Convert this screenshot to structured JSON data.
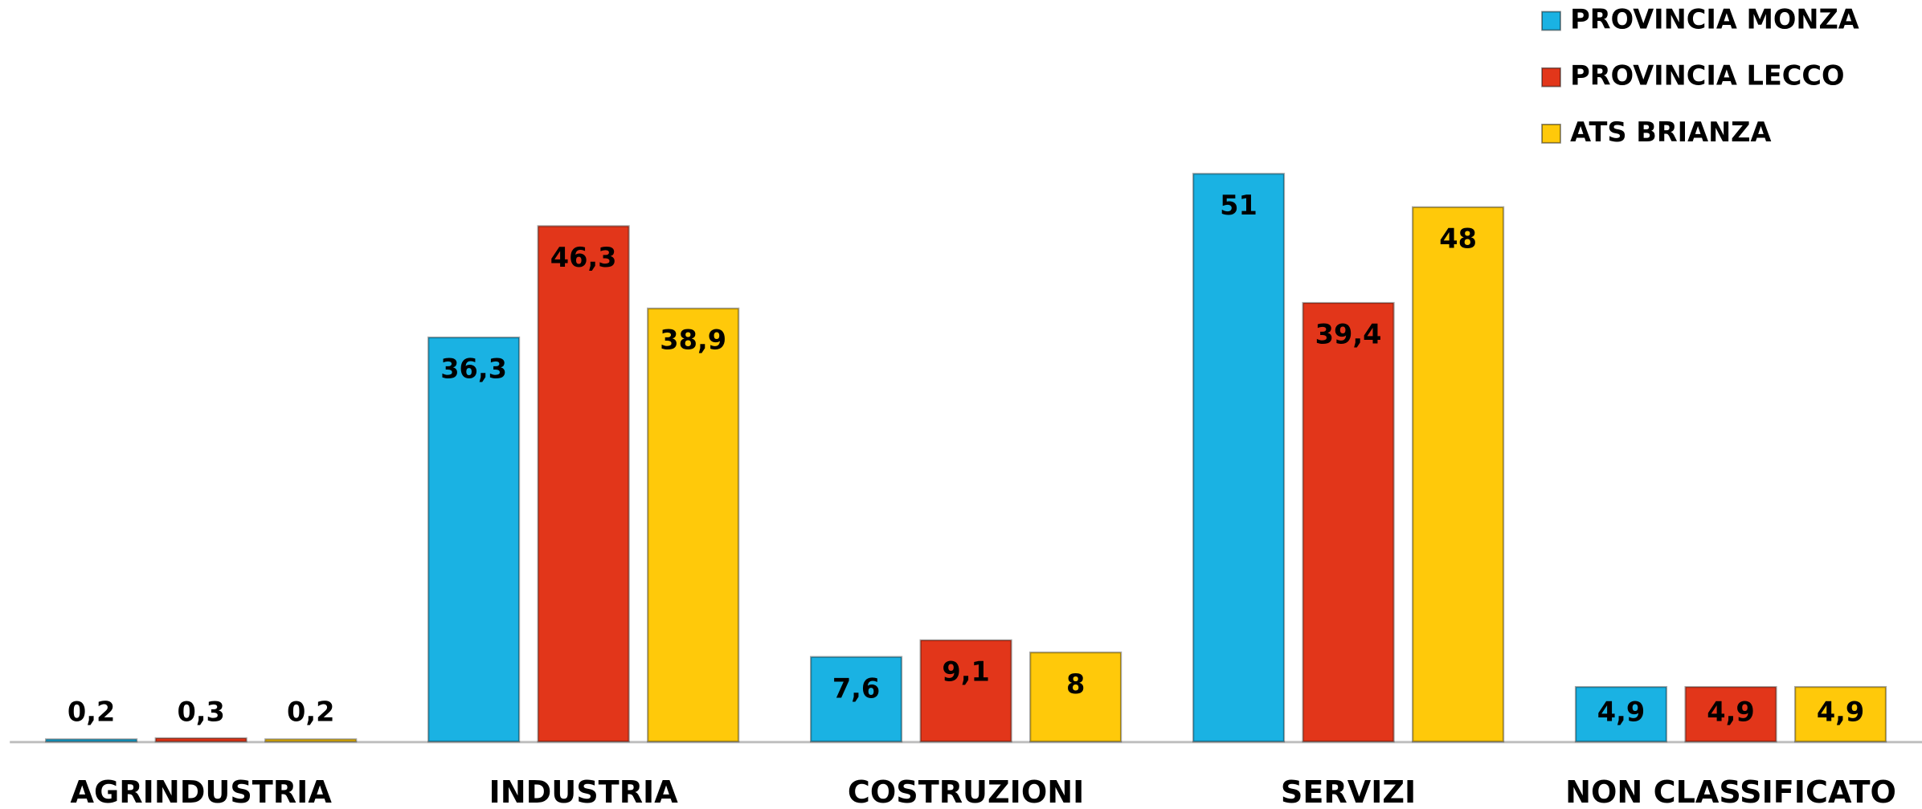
{
  "chart_data": {
    "type": "bar",
    "categories": [
      "AGRINDUSTRIA",
      "INDUSTRIA",
      "COSTRUZIONI",
      "SERVIZI",
      "NON CLASSIFICATO"
    ],
    "series": [
      {
        "name": "PROVINCIA MONZA",
        "color": "#1ab2e3",
        "values": [
          0.2,
          36.3,
          7.6,
          51,
          4.9
        ],
        "value_labels": [
          "0,2",
          "36,3",
          "7,6",
          "51",
          "4,9"
        ]
      },
      {
        "name": "PROVINCIA LECCO",
        "color": "#e2361a",
        "values": [
          0.3,
          46.3,
          9.1,
          39.4,
          4.9
        ],
        "value_labels": [
          "0,3",
          "46,3",
          "9,1",
          "39,4",
          "4,9"
        ]
      },
      {
        "name": "ATS BRIANZA",
        "color": "#ffc90a",
        "values": [
          0.2,
          38.9,
          8,
          48,
          4.9
        ],
        "value_labels": [
          "0,2",
          "38,9",
          "8",
          "48",
          "4,9"
        ]
      }
    ],
    "ylim": [
      0,
      60
    ],
    "legend": "top-right"
  }
}
